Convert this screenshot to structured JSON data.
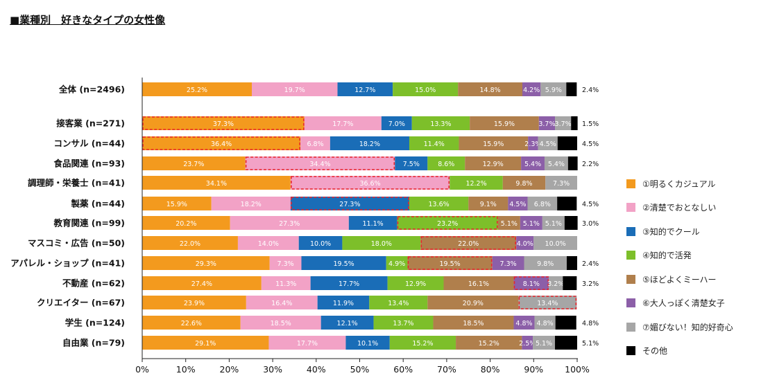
{
  "title": "■業種別　好きなタイプの女性像",
  "chart_data": {
    "type": "bar",
    "orientation": "horizontal",
    "stacked": true,
    "title": "■業種別　好きなタイプの女性像",
    "xlim": [
      0,
      100
    ],
    "xticks": [
      "0%",
      "10%",
      "20%",
      "30%",
      "40%",
      "50%",
      "60%",
      "70%",
      "80%",
      "90%",
      "100%"
    ],
    "legend_position": "right",
    "grid": false,
    "categories": [
      "全体 (n=2496)",
      "接客業 (n=271)",
      "コンサル (n=44)",
      "食品関連 (n=93)",
      "調理師・栄養士 (n=41)",
      "製薬 (n=44)",
      "教育関連 (n=99)",
      "マスコミ・広告 (n=50)",
      "アパレル・ショップ (n=41)",
      "不動産 (n=62)",
      "クリエイター (n=67)",
      "学生 (n=124)",
      "自由業 (n=79)"
    ],
    "series": [
      {
        "name": "①明るくカジュアル",
        "color": "#f39a1e",
        "values": [
          25.2,
          37.3,
          36.4,
          23.7,
          34.1,
          15.9,
          20.2,
          22.0,
          29.3,
          27.4,
          23.9,
          22.6,
          29.1
        ]
      },
      {
        "name": "②清楚でおとなしい",
        "color": "#f2a2c6",
        "values": [
          19.7,
          17.7,
          6.8,
          34.4,
          36.6,
          18.2,
          27.3,
          14.0,
          7.3,
          11.3,
          16.4,
          18.5,
          17.7
        ]
      },
      {
        "name": "③知的でクール",
        "color": "#1a6db7",
        "values": [
          12.7,
          7.0,
          18.2,
          7.5,
          0,
          27.3,
          11.1,
          10.0,
          19.5,
          17.7,
          11.9,
          12.1,
          10.1
        ]
      },
      {
        "name": "④知的で活発",
        "color": "#7dbf2a",
        "values": [
          15.0,
          13.3,
          11.4,
          8.6,
          12.2,
          13.6,
          23.2,
          18.0,
          4.9,
          12.9,
          13.4,
          13.7,
          15.2
        ]
      },
      {
        "name": "⑤ほどよくミーハー",
        "color": "#b07f4c",
        "values": [
          14.8,
          15.9,
          15.9,
          12.9,
          9.8,
          9.1,
          5.1,
          22.0,
          19.5,
          16.1,
          20.9,
          18.5,
          15.2
        ]
      },
      {
        "name": "⑥大人っぽく清楚女子",
        "color": "#8c5fa8",
        "values": [
          4.2,
          3.7,
          2.3,
          5.4,
          0,
          4.5,
          5.1,
          4.0,
          7.3,
          8.1,
          0,
          4.8,
          2.5
        ]
      },
      {
        "name": "⑦媚びない！知的好奇心",
        "color": "#a6a6a6",
        "values": [
          5.9,
          3.7,
          4.5,
          5.4,
          7.3,
          6.8,
          5.1,
          10.0,
          9.8,
          3.2,
          13.4,
          4.8,
          5.1
        ]
      },
      {
        "name": "その他",
        "color": "#000000",
        "values": [
          2.4,
          1.5,
          4.5,
          2.2,
          0,
          4.5,
          3.0,
          0,
          2.4,
          3.2,
          0,
          4.8,
          5.1
        ]
      }
    ],
    "data_labels": [
      [
        "25.2%",
        "19.7%",
        "12.7%",
        "15.0%",
        "14.8%",
        "4.2%",
        "5.9%",
        "2.4%"
      ],
      [
        "37.3%",
        "17.7%",
        "7.0%",
        "13.3%",
        "15.9%",
        "3.7%",
        "3.7%",
        "1.5%"
      ],
      [
        "36.4%",
        "6.8%",
        "18.2%",
        "11.4%",
        "15.9%",
        "2.3%",
        "4.5%",
        "4.5%"
      ],
      [
        "23.7%",
        "34.4%",
        "7.5%",
        "8.6%",
        "12.9%",
        "5.4%",
        "5.4%",
        "2.2%"
      ],
      [
        "34.1%",
        "36.6%",
        "",
        "12.2%",
        "9.8%",
        "",
        "7.3%",
        ""
      ],
      [
        "15.9%",
        "18.2%",
        "27.3%",
        "13.6%",
        "9.1%",
        "4.5%",
        "6.8%",
        "4.5%"
      ],
      [
        "20.2%",
        "27.3%",
        "11.1%",
        "23.2%",
        "5.1%",
        "5.1%",
        "5.1%",
        "3.0%"
      ],
      [
        "22.0%",
        "14.0%",
        "10.0%",
        "18.0%",
        "22.0%",
        "4.0%",
        "10.0%",
        ""
      ],
      [
        "29.3%",
        "7.3%",
        "19.5%",
        "4.9%",
        "19.5%",
        "7.3%",
        "9.8%",
        "2.4%"
      ],
      [
        "27.4%",
        "11.3%",
        "17.7%",
        "12.9%",
        "16.1%",
        "8.1%",
        "3.2%",
        "3.2%"
      ],
      [
        "23.9%",
        "16.4%",
        "11.9%",
        "13.4%",
        "20.9%",
        "",
        "13.4%",
        ""
      ],
      [
        "22.6%",
        "18.5%",
        "12.1%",
        "13.7%",
        "18.5%",
        "4.8%",
        "4.8%",
        "4.8%"
      ],
      [
        "29.1%",
        "17.7%",
        "10.1%",
        "15.2%",
        "15.2%",
        "2.5%",
        "5.1%",
        "5.1%"
      ]
    ],
    "highlighted_segments": [
      {
        "category": "接客業 (n=271)",
        "series": "①明るくカジュアル"
      },
      {
        "category": "コンサル (n=44)",
        "series": "①明るくカジュアル"
      },
      {
        "category": "食品関連 (n=93)",
        "series": "②清楚でおとなしい"
      },
      {
        "category": "調理師・栄養士 (n=41)",
        "series": "②清楚でおとなしい"
      },
      {
        "category": "製薬 (n=44)",
        "series": "③知的でクール"
      },
      {
        "category": "教育関連 (n=99)",
        "series": "④知的で活発"
      },
      {
        "category": "マスコミ・広告 (n=50)",
        "series": "⑤ほどよくミーハー"
      },
      {
        "category": "アパレル・ショップ (n=41)",
        "series": "⑤ほどよくミーハー"
      },
      {
        "category": "不動産 (n=62)",
        "series": "⑥大人っぽく清楚女子"
      },
      {
        "category": "クリエイター (n=67)",
        "series": "⑦媚びない！知的好奇心"
      }
    ]
  }
}
